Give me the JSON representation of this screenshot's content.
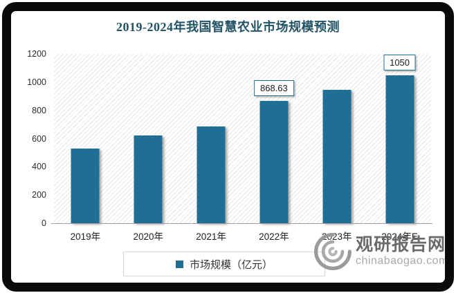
{
  "title": "2019-2024年我国智慧农业市场规模预测",
  "colors": {
    "bar": "#206E93",
    "title": "#215365",
    "label_box_border": "#24708F"
  },
  "chart_data": {
    "type": "bar",
    "title": "2019-2024年我国智慧农业市场规模预测",
    "categories": [
      "2019年",
      "2020年",
      "2021年",
      "2022年",
      "2023年",
      "2024年E"
    ],
    "values": [
      530,
      622,
      686,
      868.63,
      945,
      1050
    ],
    "point_labels": [
      null,
      null,
      null,
      "868.63",
      null,
      "1050"
    ],
    "ylim": [
      0,
      1200
    ],
    "yticks": [
      0,
      200,
      400,
      600,
      800,
      1000,
      1200
    ],
    "xlabel": "",
    "ylabel": "",
    "grid": false,
    "plot_background": "light diagonal hatch",
    "legend_position": "bottom",
    "legend_entries": [
      "市场规模（亿元）"
    ]
  },
  "legend": {
    "label": "市场规模（亿元）"
  },
  "watermark": {
    "brand": "观研报告网",
    "domain": "chinabaogao.com"
  }
}
